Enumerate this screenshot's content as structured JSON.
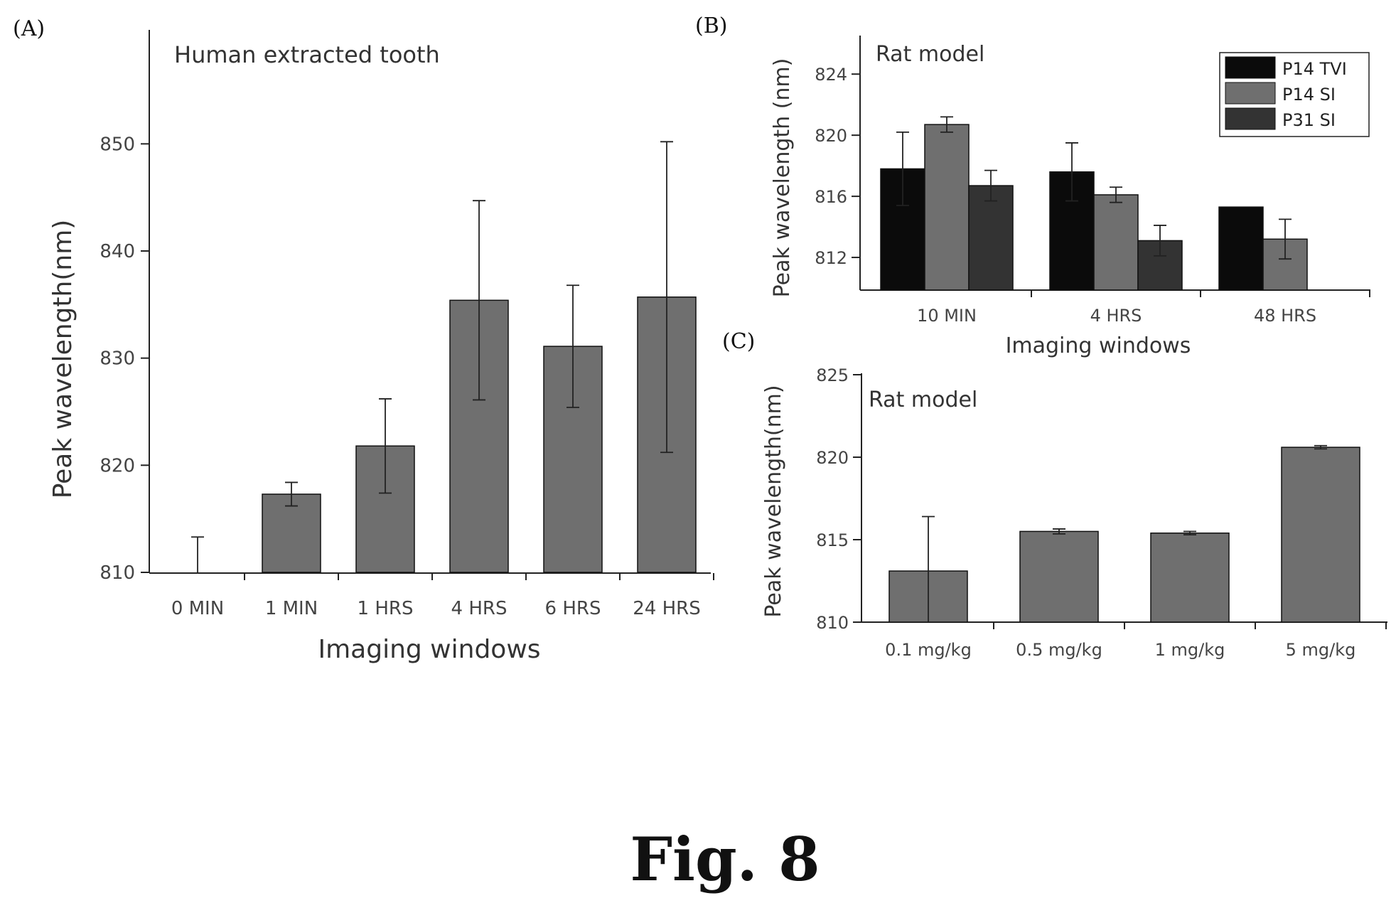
{
  "panels": {
    "A": {
      "label": "(A)"
    },
    "B": {
      "label": "(B)"
    },
    "C": {
      "label": "(C)"
    }
  },
  "figure_caption": "Fig. 8",
  "colors": {
    "bar_gray": "#6f6f6f",
    "bar_black": "#0b0b0b",
    "bar_dark": "#333333",
    "axis": "#222222"
  },
  "chart_data": [
    {
      "id": "A",
      "type": "bar",
      "annotation": "Human extracted tooth",
      "xlabel": "Imaging windows",
      "ylabel": "Peak wavelength(nm)",
      "ylim": [
        810,
        855
      ],
      "yticks": [
        810,
        820,
        830,
        840,
        850
      ],
      "categories": [
        "0 MIN",
        "1 MIN",
        "1 HRS",
        "4 HRS",
        "6 HRS",
        "24 HRS"
      ],
      "series": [
        {
          "values": [
            810.0,
            817.3,
            821.8,
            835.4,
            831.1,
            835.7
          ],
          "errors": [
            3.3,
            1.1,
            4.4,
            9.3,
            5.7,
            14.5
          ]
        }
      ]
    },
    {
      "id": "B",
      "type": "bar",
      "annotation": "Rat model",
      "xlabel": "Imaging windows",
      "ylabel": "Peak wavelength (nm)",
      "ylim": [
        808.0,
        825.5
      ],
      "yticks": [
        812,
        816,
        820,
        824
      ],
      "categories": [
        "10 MIN",
        "4 HRS",
        "48 HRS"
      ],
      "legend_position": "top-right",
      "series": [
        {
          "name": "P14 TVI",
          "values": [
            817.8,
            817.6,
            815.3
          ],
          "errors": [
            2.4,
            1.9,
            0
          ]
        },
        {
          "name": "P14 SI",
          "values": [
            820.7,
            816.1,
            813.2
          ],
          "errors": [
            0.5,
            0.5,
            1.3
          ]
        },
        {
          "name": "P31 SI",
          "values": [
            816.7,
            813.1,
            null
          ],
          "errors": [
            1.0,
            1.0,
            null
          ]
        }
      ]
    },
    {
      "id": "C",
      "type": "bar",
      "annotation": "Rat model",
      "xlabel": "",
      "ylabel": "Peak wavelength(nm)",
      "ylim": [
        810,
        825
      ],
      "yticks": [
        810,
        815,
        820,
        825
      ],
      "categories": [
        "0.1 mg/kg",
        "0.5 mg/kg",
        "1 mg/kg",
        "5 mg/kg"
      ],
      "series": [
        {
          "values": [
            813.1,
            815.5,
            815.4,
            820.6
          ],
          "errors": [
            3.3,
            0.15,
            0.1,
            0.1
          ]
        }
      ]
    }
  ]
}
